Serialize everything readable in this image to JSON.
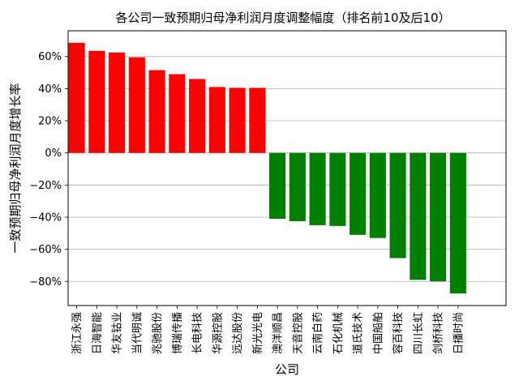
{
  "chart_data": {
    "type": "bar",
    "title": "各公司一致预期归母净利润月度调整幅度（排名前10及后10）",
    "xlabel": "公司",
    "ylabel": "一致预期归母净利润月度增长率",
    "categories": [
      "浙江永强",
      "日海智能",
      "华友钴业",
      "当代明诚",
      "兆驰股份",
      "博瑞传播",
      "长电科技",
      "华源控股",
      "远达股份",
      "新光光电",
      "澳洋顺昌",
      "天音控股",
      "云南白药",
      "石化机械",
      "道氏技术",
      "中国船舶",
      "容百科技",
      "四川长虹",
      "剑桥科技",
      "日播时尚"
    ],
    "values": [
      68.5,
      63.5,
      62.5,
      59.5,
      51.5,
      49,
      46,
      41,
      40.5,
      40.5,
      -41,
      -42.5,
      -45,
      -45.5,
      -51,
      -53,
      -65.5,
      -79,
      -80,
      -87.5
    ],
    "ylim": [
      -95,
      76
    ],
    "yticks": [
      -80,
      -60,
      -40,
      -20,
      0,
      20,
      40,
      60
    ],
    "ytick_labels": [
      "−80%",
      "−60%",
      "−40%",
      "−20%",
      "0%",
      "20%",
      "40%",
      "60%"
    ],
    "grid": "y",
    "colors": {
      "positive": "#ff0000",
      "negative": "#008000",
      "grid": "#b0b0b0"
    }
  }
}
